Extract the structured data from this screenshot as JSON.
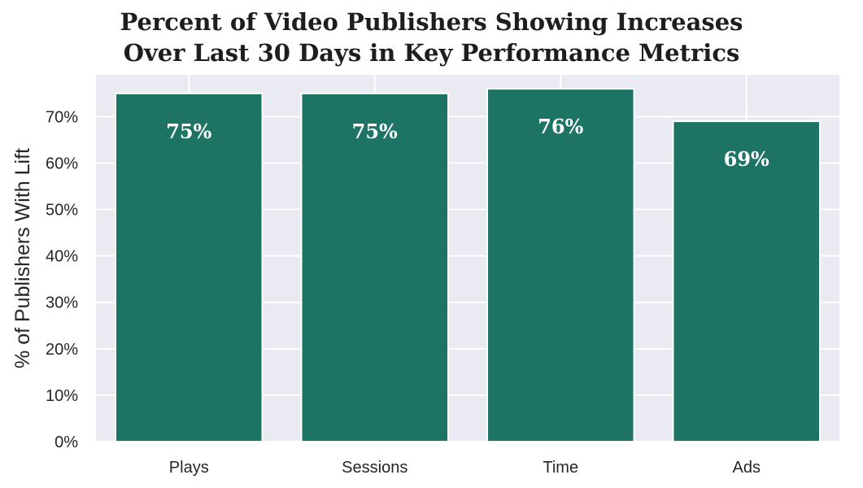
{
  "chart_data": {
    "type": "bar",
    "title_lines": [
      "Percent of Video Publishers Showing Increases",
      "Over Last 30 Days in Key Performance Metrics"
    ],
    "xlabel": "",
    "ylabel": "% of Publishers With Lift",
    "categories": [
      "Plays",
      "Sessions",
      "Time",
      "Ads"
    ],
    "values": [
      75,
      75,
      76,
      69
    ],
    "data_labels": [
      "75%",
      "75%",
      "76%",
      "69%"
    ],
    "ylim": [
      0,
      79
    ],
    "yticks": [
      0,
      10,
      20,
      30,
      40,
      50,
      60,
      70
    ],
    "ytick_labels": [
      "0%",
      "10%",
      "20%",
      "30%",
      "40%",
      "50%",
      "60%",
      "70%"
    ],
    "grid": true,
    "colors": {
      "bar": "#1d7465",
      "plot_background": "#eaeaf2",
      "grid": "#ffffff"
    }
  }
}
